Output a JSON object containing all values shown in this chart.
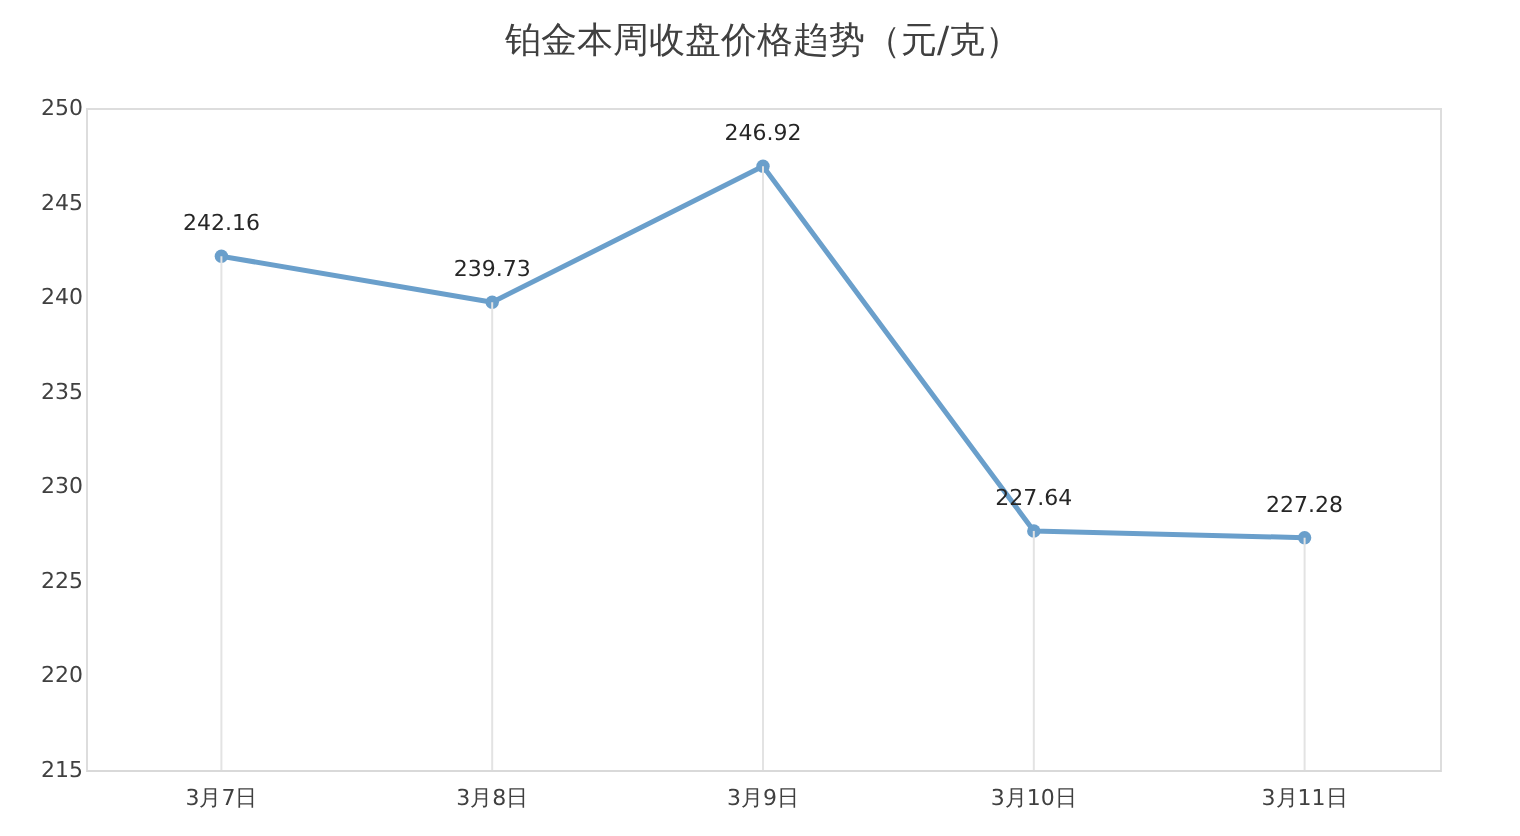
{
  "chart_data": {
    "type": "line",
    "title": "铂金本周收盘价格趋势（元/克）",
    "categories": [
      "3月7日",
      "3月8日",
      "3月9日",
      "3月10日",
      "3月11日"
    ],
    "series": [
      {
        "color": "#6a9fcb",
        "values": [
          242.16,
          239.73,
          246.92,
          227.64,
          227.28
        ]
      }
    ],
    "ylim": [
      215,
      250
    ],
    "yticks": [
      215,
      220,
      225,
      230,
      235,
      240,
      245,
      250
    ],
    "grid": "x",
    "marker": "circle",
    "line_style": "solid",
    "data_labels": true
  }
}
